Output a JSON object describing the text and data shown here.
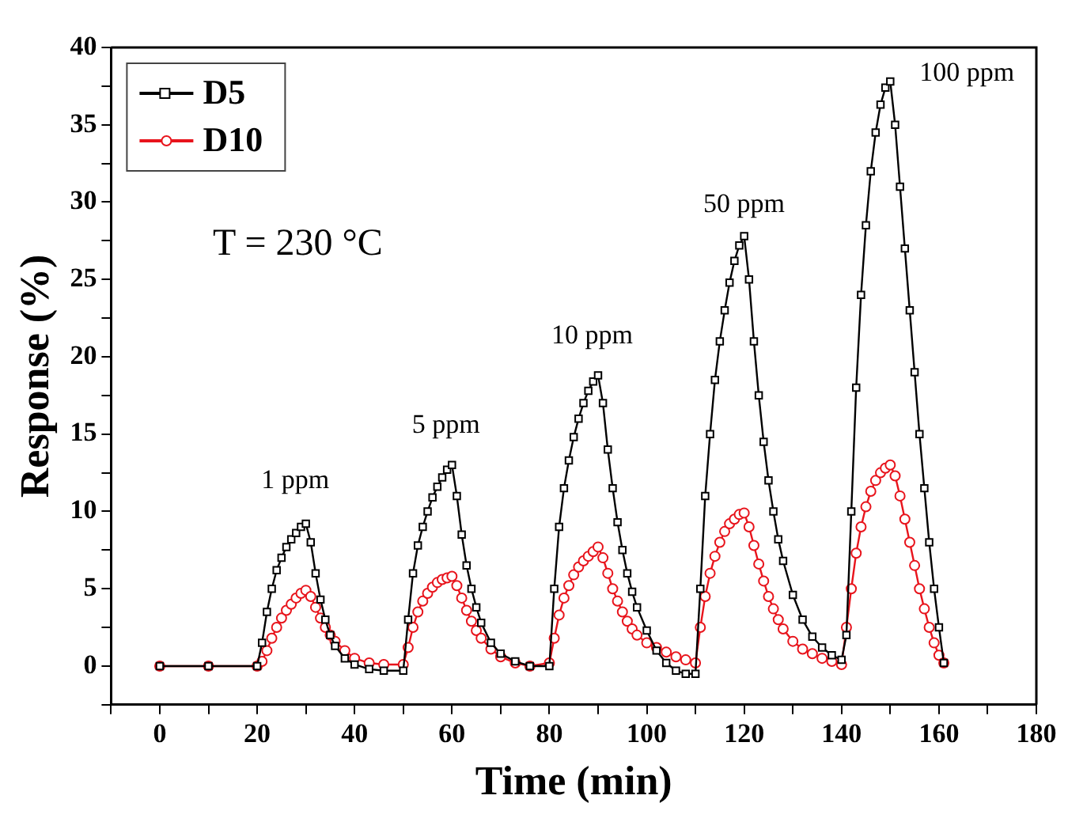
{
  "chart_data": {
    "type": "line",
    "xlabel": "Time (min)",
    "ylabel": "Response (%)",
    "xlim": [
      -10,
      180
    ],
    "ylim": [
      -2.5,
      40
    ],
    "xticks": [
      {
        "value": -10,
        "label": null
      },
      0,
      {
        "value": 10,
        "label": null
      },
      20,
      {
        "value": 30,
        "label": null
      },
      40,
      {
        "value": 50,
        "label": null
      },
      60,
      {
        "value": 70,
        "label": null
      },
      80,
      {
        "value": 90,
        "label": null
      },
      100,
      {
        "value": 110,
        "label": null
      },
      120,
      {
        "value": 130,
        "label": null
      },
      140,
      {
        "value": 150,
        "label": null
      },
      160,
      {
        "value": 170,
        "label": null
      },
      180
    ],
    "yticks": [
      {
        "value": -2.5,
        "label": null
      },
      0,
      {
        "value": 2.5,
        "label": null
      },
      5,
      {
        "value": 7.5,
        "label": null
      },
      10,
      {
        "value": 12.5,
        "label": null
      },
      15,
      {
        "value": 17.5,
        "label": null
      },
      20,
      {
        "value": 22.5,
        "label": null
      },
      25,
      {
        "value": 27.5,
        "label": null
      },
      30,
      {
        "value": 32.5,
        "label": null
      },
      35,
      {
        "value": 37.5,
        "label": null
      },
      40
    ],
    "grid": false,
    "legend": "top left",
    "line_style": "solid",
    "series": [
      {
        "name": "D5",
        "color": "#000000",
        "marker": "square",
        "x": [
          0,
          10,
          20,
          21,
          22,
          23,
          24,
          25,
          26,
          27,
          28,
          29,
          30,
          31,
          32,
          33,
          34,
          35,
          36,
          38,
          40,
          43,
          46,
          50,
          51,
          52,
          53,
          54,
          55,
          56,
          57,
          58,
          59,
          60,
          61,
          62,
          63,
          64,
          65,
          66,
          68,
          70,
          73,
          76,
          80,
          81,
          82,
          83,
          84,
          85,
          86,
          87,
          88,
          89,
          90,
          91,
          92,
          93,
          94,
          95,
          96,
          97,
          98,
          100,
          102,
          104,
          106,
          108,
          110,
          111,
          112,
          113,
          114,
          115,
          116,
          117,
          118,
          119,
          120,
          121,
          122,
          123,
          124,
          125,
          126,
          127,
          128,
          130,
          132,
          134,
          136,
          138,
          140,
          141,
          142,
          143,
          144,
          145,
          146,
          147,
          148,
          149,
          150,
          151,
          152,
          153,
          154,
          155,
          156,
          157,
          158,
          159,
          160,
          161
        ],
        "values": [
          0,
          0,
          0,
          1.5,
          3.5,
          5,
          6.2,
          7,
          7.7,
          8.2,
          8.6,
          9,
          9.2,
          8,
          6,
          4.3,
          3,
          2,
          1.3,
          0.5,
          0.1,
          -0.2,
          -0.3,
          -0.3,
          3,
          6,
          7.8,
          9,
          10,
          10.9,
          11.6,
          12.2,
          12.7,
          13,
          11,
          8.5,
          6.5,
          5,
          3.8,
          2.8,
          1.5,
          0.8,
          0.3,
          0,
          0,
          5,
          9,
          11.5,
          13.3,
          14.8,
          16,
          17,
          17.8,
          18.4,
          18.8,
          17,
          14,
          11.5,
          9.3,
          7.5,
          6,
          4.8,
          3.8,
          2.3,
          1,
          0.2,
          -0.3,
          -0.5,
          -0.5,
          5,
          11,
          15,
          18.5,
          21,
          23,
          24.8,
          26.2,
          27.2,
          27.8,
          25,
          21,
          17.5,
          14.5,
          12,
          10,
          8.2,
          6.8,
          4.6,
          3,
          1.9,
          1.2,
          0.7,
          0.4,
          2,
          10,
          18,
          24,
          28.5,
          32,
          34.5,
          36.3,
          37.4,
          37.8,
          35,
          31,
          27,
          23,
          19,
          15,
          11.5,
          8,
          5,
          2.5,
          0.2
        ]
      },
      {
        "name": "D10",
        "color": "#e8141c",
        "marker": "circle",
        "x": [
          0,
          10,
          20,
          21,
          22,
          23,
          24,
          25,
          26,
          27,
          28,
          29,
          30,
          31,
          32,
          33,
          34,
          35,
          36,
          38,
          40,
          43,
          46,
          50,
          51,
          52,
          53,
          54,
          55,
          56,
          57,
          58,
          59,
          60,
          61,
          62,
          63,
          64,
          65,
          66,
          68,
          70,
          73,
          76,
          80,
          81,
          82,
          83,
          84,
          85,
          86,
          87,
          88,
          89,
          90,
          91,
          92,
          93,
          94,
          95,
          96,
          97,
          98,
          100,
          102,
          104,
          106,
          108,
          110,
          111,
          112,
          113,
          114,
          115,
          116,
          117,
          118,
          119,
          120,
          121,
          122,
          123,
          124,
          125,
          126,
          127,
          128,
          130,
          132,
          134,
          136,
          138,
          140,
          141,
          142,
          143,
          144,
          145,
          146,
          147,
          148,
          149,
          150,
          151,
          152,
          153,
          154,
          155,
          156,
          157,
          158,
          159,
          160,
          161
        ],
        "values": [
          0,
          0,
          0,
          0.3,
          1,
          1.8,
          2.5,
          3.1,
          3.6,
          4,
          4.4,
          4.7,
          4.9,
          4.5,
          3.8,
          3.1,
          2.5,
          2,
          1.6,
          1,
          0.5,
          0.2,
          0.1,
          0.1,
          1.2,
          2.5,
          3.5,
          4.2,
          4.7,
          5.1,
          5.4,
          5.6,
          5.7,
          5.8,
          5.2,
          4.4,
          3.6,
          2.9,
          2.3,
          1.8,
          1.1,
          0.6,
          0.2,
          0,
          0.2,
          1.8,
          3.3,
          4.4,
          5.2,
          5.9,
          6.4,
          6.8,
          7.1,
          7.4,
          7.7,
          7,
          6,
          5,
          4.2,
          3.5,
          2.9,
          2.4,
          2,
          1.5,
          1.2,
          0.9,
          0.6,
          0.4,
          0.2,
          2.5,
          4.5,
          6,
          7.1,
          8,
          8.7,
          9.2,
          9.5,
          9.8,
          9.9,
          9,
          7.8,
          6.6,
          5.5,
          4.5,
          3.7,
          3,
          2.4,
          1.6,
          1.1,
          0.8,
          0.5,
          0.3,
          0.1,
          2.5,
          5,
          7.3,
          9,
          10.3,
          11.3,
          12,
          12.5,
          12.8,
          13,
          12.3,
          11,
          9.5,
          8,
          6.5,
          5,
          3.7,
          2.5,
          1.5,
          0.7,
          0.2
        ]
      }
    ],
    "annotations": [
      "T = 230 °C",
      "1 ppm",
      "5 ppm",
      "10 ppm",
      "50 ppm",
      "100 ppm"
    ]
  }
}
